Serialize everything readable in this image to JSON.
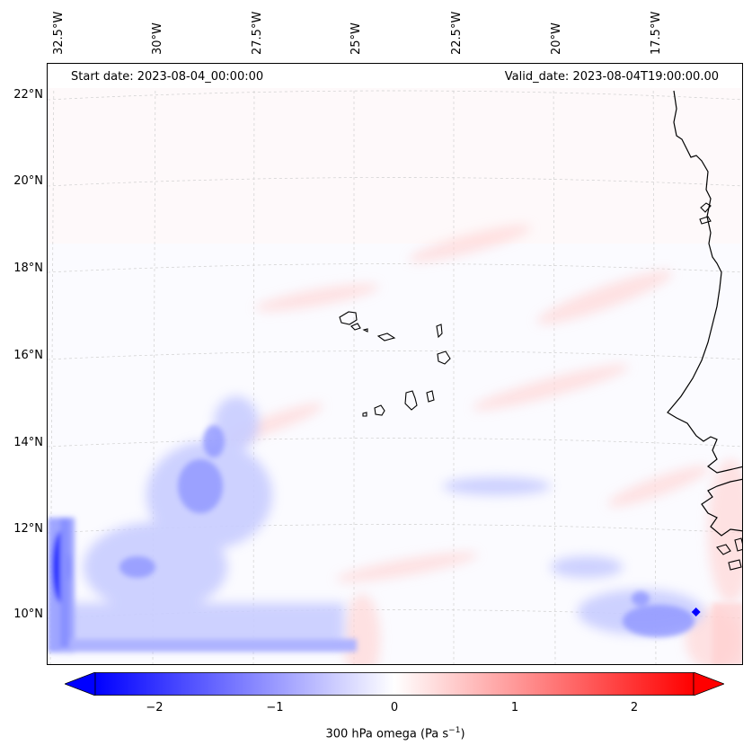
{
  "map": {
    "start_date": "Start date: 2023-08-04_00:00:00",
    "valid_date": "Valid_date: 2023-08-04T19:00:00.00",
    "lon_labels": [
      "32.5°W",
      "30°W",
      "27.5°W",
      "25°W",
      "22.5°W",
      "20°W",
      "17.5°W"
    ],
    "lat_labels": [
      "22°N",
      "20°N",
      "18°N",
      "16°N",
      "14°N",
      "12°N",
      "10°N"
    ],
    "coastline_color": "#000000",
    "gridline_style": "dashed light gray"
  },
  "colorbar": {
    "label_prefix": "300 hPa omega (Pa s",
    "label_exp": "−1",
    "label_suffix": ")",
    "ticks": [
      "−2",
      "−1",
      "0",
      "1",
      "2"
    ],
    "range": [
      -2.75,
      2.75
    ],
    "colormap": "bwr",
    "low_color": "#0000ff",
    "mid_color": "#ffffff",
    "high_color": "#ff0000"
  }
}
